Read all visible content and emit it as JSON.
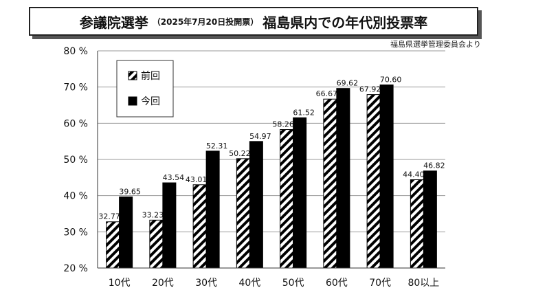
{
  "header": {
    "title_left": "参議院選挙",
    "title_paren": "（2025年7月20日投開票）",
    "title_right": "福島県内での年代別投票率"
  },
  "source": "福島県選挙管理委員会より",
  "colors": {
    "previous": "hatched-black-white",
    "current": "#000000"
  },
  "chart_data": {
    "type": "bar",
    "categories": [
      "10代",
      "20代",
      "30代",
      "40代",
      "50代",
      "60代",
      "70代",
      "80以上"
    ],
    "series": [
      {
        "name": "前回",
        "values": [
          32.77,
          33.23,
          43.01,
          50.22,
          58.26,
          66.67,
          67.92,
          44.4
        ],
        "labels": [
          "32.77",
          "33.23",
          "43.01",
          "50.22",
          "58.26",
          "66.67",
          "67.92",
          "44.40"
        ]
      },
      {
        "name": "今回",
        "values": [
          39.65,
          43.54,
          52.31,
          54.97,
          61.52,
          69.62,
          70.6,
          46.82
        ],
        "labels": [
          "39.65",
          "43.54",
          "52.31",
          "54.97",
          "61.52",
          "69.62",
          "70.60",
          "46.82"
        ]
      }
    ],
    "yticks": [
      "20 %",
      "30 %",
      "40 %",
      "50 %",
      "60 %",
      "70 %",
      "80 %"
    ],
    "ylim": [
      20,
      80
    ],
    "grid": true,
    "legend_position": "top-left"
  }
}
